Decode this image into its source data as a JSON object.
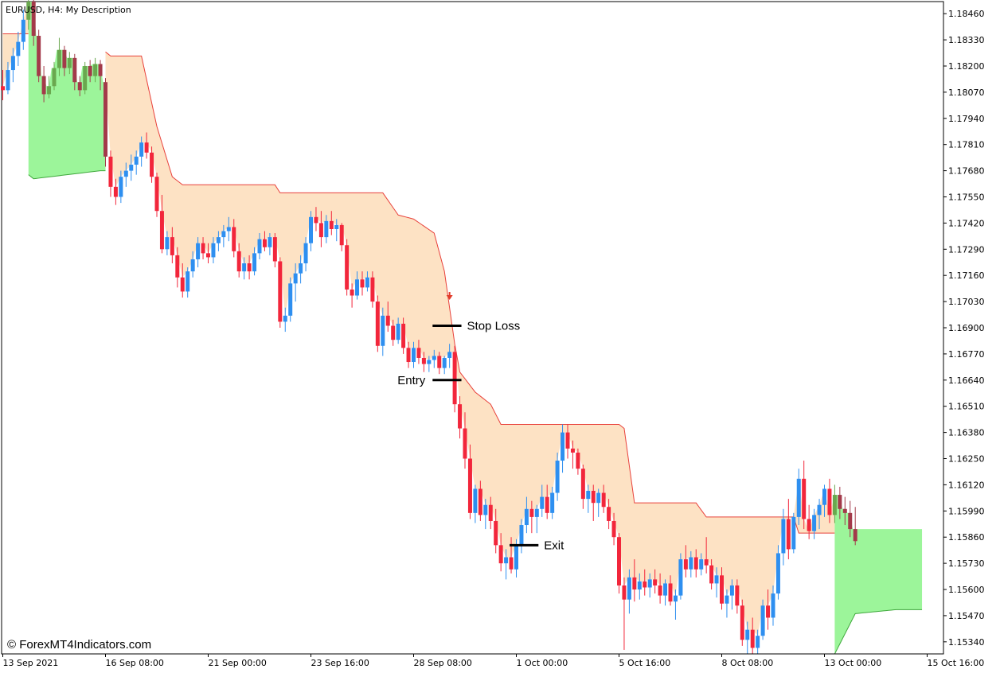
{
  "title": "EURUSD, H4:  My Description",
  "watermark": "© ForexMT4Indicators.com",
  "colors": {
    "bull": "#2e8ff0",
    "bear": "#f2263b",
    "doji_bull": "#6aa84f",
    "doji_bear": "#a33a4a",
    "bear_band": "#fde2c4",
    "bear_band_line": "#e8413b",
    "bull_band": "#9cf59a",
    "bull_band_line": "#3fa83c",
    "marker": "#e23b2a",
    "level_line": "#000000"
  },
  "chart_data": {
    "type": "candlestick",
    "symbol": "EURUSD",
    "timeframe": "H4",
    "ylim": [
      1.1528,
      1.1852
    ],
    "y_ticks": [
      "1.18460",
      "1.18330",
      "1.18200",
      "1.18070",
      "1.17940",
      "1.17810",
      "1.17680",
      "1.17550",
      "1.17420",
      "1.17290",
      "1.17160",
      "1.17030",
      "1.16900",
      "1.16770",
      "1.16640",
      "1.16510",
      "1.16380",
      "1.16250",
      "1.16120",
      "1.15990",
      "1.15860",
      "1.15730",
      "1.15600",
      "1.15470",
      "1.15340"
    ],
    "x_ticks": [
      {
        "label": "13 Sep 2021",
        "bar": 0
      },
      {
        "label": "16 Sep 08:00",
        "bar": 20
      },
      {
        "label": "21 Sep 00:00",
        "bar": 40
      },
      {
        "label": "23 Sep 16:00",
        "bar": 60
      },
      {
        "label": "28 Sep 08:00",
        "bar": 80
      },
      {
        "label": "1 Oct 00:00",
        "bar": 100
      },
      {
        "label": "5 Oct 16:00",
        "bar": 120
      },
      {
        "label": "8 Oct 08:00",
        "bar": 140
      },
      {
        "label": "13 Oct 00:00",
        "bar": 160
      },
      {
        "label": "15 Oct 16:00",
        "bar": 180
      }
    ],
    "candles": [
      [
        1.181,
        1.1818,
        1.1803,
        1.1808
      ],
      [
        1.1808,
        1.1822,
        1.1806,
        1.1818
      ],
      [
        1.1818,
        1.1829,
        1.1812,
        1.1825
      ],
      [
        1.1825,
        1.1837,
        1.182,
        1.1832
      ],
      [
        1.1832,
        1.1848,
        1.1828,
        1.1843
      ],
      [
        1.1843,
        1.1856,
        1.1838,
        1.1852
      ],
      [
        1.1852,
        1.1854,
        1.183,
        1.1835
      ],
      [
        1.1835,
        1.1838,
        1.1812,
        1.1815
      ],
      [
        1.1815,
        1.182,
        1.1802,
        1.1806
      ],
      [
        1.1806,
        1.1815,
        1.1804,
        1.181
      ],
      [
        1.181,
        1.1822,
        1.1808,
        1.1819
      ],
      [
        1.1819,
        1.1834,
        1.1815,
        1.1828
      ],
      [
        1.1828,
        1.183,
        1.1815,
        1.1819
      ],
      [
        1.1819,
        1.1827,
        1.1816,
        1.1824
      ],
      [
        1.1824,
        1.1826,
        1.1808,
        1.1812
      ],
      [
        1.1812,
        1.1815,
        1.1805,
        1.1808
      ],
      [
        1.1808,
        1.1822,
        1.1806,
        1.182
      ],
      [
        1.182,
        1.1823,
        1.1812,
        1.1815
      ],
      [
        1.1815,
        1.1824,
        1.1812,
        1.1821
      ],
      [
        1.1821,
        1.1823,
        1.1808,
        1.1815
      ],
      [
        1.1812,
        1.1814,
        1.177,
        1.1775
      ],
      [
        1.1775,
        1.1778,
        1.1755,
        1.176
      ],
      [
        1.176,
        1.1764,
        1.1751,
        1.1755
      ],
      [
        1.1755,
        1.1768,
        1.1752,
        1.1765
      ],
      [
        1.1765,
        1.1772,
        1.176,
        1.1768
      ],
      [
        1.1768,
        1.1776,
        1.1763,
        1.1771
      ],
      [
        1.1771,
        1.1778,
        1.1766,
        1.1775
      ],
      [
        1.1775,
        1.1785,
        1.177,
        1.1782
      ],
      [
        1.1782,
        1.1787,
        1.1774,
        1.1777
      ],
      [
        1.1777,
        1.178,
        1.1762,
        1.1765
      ],
      [
        1.1765,
        1.1767,
        1.1745,
        1.1748
      ],
      [
        1.1748,
        1.1756,
        1.1727,
        1.1729
      ],
      [
        1.1729,
        1.1738,
        1.1726,
        1.1735
      ],
      [
        1.1735,
        1.174,
        1.1722,
        1.1726
      ],
      [
        1.1726,
        1.173,
        1.171,
        1.1715
      ],
      [
        1.1715,
        1.1722,
        1.1705,
        1.1708
      ],
      [
        1.1708,
        1.172,
        1.1705,
        1.1718
      ],
      [
        1.1718,
        1.1728,
        1.1715,
        1.1724
      ],
      [
        1.1724,
        1.1735,
        1.172,
        1.1732
      ],
      [
        1.1732,
        1.1735,
        1.1724,
        1.1727
      ],
      [
        1.1727,
        1.1732,
        1.1722,
        1.1725
      ],
      [
        1.1725,
        1.1735,
        1.1722,
        1.1732
      ],
      [
        1.1732,
        1.1738,
        1.1728,
        1.1735
      ],
      [
        1.1735,
        1.1741,
        1.173,
        1.1738
      ],
      [
        1.1738,
        1.1745,
        1.1733,
        1.174
      ],
      [
        1.174,
        1.1744,
        1.1725,
        1.1728
      ],
      [
        1.1728,
        1.1732,
        1.1715,
        1.1718
      ],
      [
        1.1718,
        1.1725,
        1.1714,
        1.1722
      ],
      [
        1.1722,
        1.1726,
        1.1714,
        1.1718
      ],
      [
        1.1718,
        1.173,
        1.1716,
        1.1727
      ],
      [
        1.1727,
        1.1737,
        1.1724,
        1.1734
      ],
      [
        1.1734,
        1.1738,
        1.1728,
        1.173
      ],
      [
        1.173,
        1.1737,
        1.1726,
        1.1735
      ],
      [
        1.1735,
        1.1737,
        1.172,
        1.1723
      ],
      [
        1.1723,
        1.1725,
        1.169,
        1.1693
      ],
      [
        1.1693,
        1.17,
        1.1688,
        1.1696
      ],
      [
        1.1696,
        1.1715,
        1.1693,
        1.1712
      ],
      [
        1.1712,
        1.1722,
        1.1703,
        1.1717
      ],
      [
        1.1717,
        1.1726,
        1.1712,
        1.1722
      ],
      [
        1.1722,
        1.1735,
        1.1718,
        1.1732
      ],
      [
        1.1732,
        1.1748,
        1.1728,
        1.1745
      ],
      [
        1.1745,
        1.175,
        1.1738,
        1.1742
      ],
      [
        1.1742,
        1.1748,
        1.173,
        1.1735
      ],
      [
        1.1735,
        1.1746,
        1.1732,
        1.1743
      ],
      [
        1.1743,
        1.1748,
        1.1736,
        1.1739
      ],
      [
        1.1739,
        1.1744,
        1.1733,
        1.1741
      ],
      [
        1.1741,
        1.1742,
        1.1728,
        1.1731
      ],
      [
        1.1731,
        1.1734,
        1.1706,
        1.1709
      ],
      [
        1.1709,
        1.1712,
        1.17,
        1.1706
      ],
      [
        1.1706,
        1.1718,
        1.1704,
        1.1714
      ],
      [
        1.1714,
        1.1718,
        1.1706,
        1.171
      ],
      [
        1.171,
        1.1718,
        1.1708,
        1.1715
      ],
      [
        1.1715,
        1.1718,
        1.17,
        1.1703
      ],
      [
        1.1703,
        1.1706,
        1.1678,
        1.1681
      ],
      [
        1.1681,
        1.17,
        1.1676,
        1.1696
      ],
      [
        1.1696,
        1.1703,
        1.1688,
        1.1691
      ],
      [
        1.1691,
        1.1694,
        1.1681,
        1.1684
      ],
      [
        1.1684,
        1.1695,
        1.1682,
        1.1692
      ],
      [
        1.1692,
        1.1695,
        1.1677,
        1.168
      ],
      [
        1.168,
        1.1683,
        1.167,
        1.1673
      ],
      [
        1.1673,
        1.1683,
        1.167,
        1.168
      ],
      [
        1.168,
        1.1684,
        1.1672,
        1.1675
      ],
      [
        1.1675,
        1.1678,
        1.1668,
        1.1672
      ],
      [
        1.1672,
        1.1676,
        1.1668,
        1.1674
      ],
      [
        1.1674,
        1.1679,
        1.167,
        1.1676
      ],
      [
        1.1676,
        1.1678,
        1.1667,
        1.167
      ],
      [
        1.167,
        1.1676,
        1.1667,
        1.1675
      ],
      [
        1.1675,
        1.1682,
        1.167,
        1.1678
      ],
      [
        1.1678,
        1.1681,
        1.1648,
        1.1652
      ],
      [
        1.1652,
        1.1656,
        1.1635,
        1.164
      ],
      [
        1.164,
        1.1648,
        1.162,
        1.1625
      ],
      [
        1.1625,
        1.1632,
        1.1595,
        1.1598
      ],
      [
        1.1598,
        1.1612,
        1.1593,
        1.161
      ],
      [
        1.161,
        1.1614,
        1.1594,
        1.1597
      ],
      [
        1.1597,
        1.1605,
        1.159,
        1.1602
      ],
      [
        1.1602,
        1.1606,
        1.159,
        1.1594
      ],
      [
        1.1594,
        1.16,
        1.1578,
        1.1582
      ],
      [
        1.1582,
        1.1588,
        1.1569,
        1.1573
      ],
      [
        1.1573,
        1.158,
        1.1565,
        1.1576
      ],
      [
        1.1576,
        1.1586,
        1.1568,
        1.157
      ],
      [
        1.157,
        1.1585,
        1.1566,
        1.1582
      ],
      [
        1.1582,
        1.1595,
        1.1578,
        1.1592
      ],
      [
        1.1592,
        1.1606,
        1.1588,
        1.16
      ],
      [
        1.16,
        1.1604,
        1.1588,
        1.1596
      ],
      [
        1.1596,
        1.1602,
        1.1588,
        1.16
      ],
      [
        1.16,
        1.1612,
        1.1596,
        1.1606
      ],
      [
        1.1606,
        1.1612,
        1.1595,
        1.1598
      ],
      [
        1.1598,
        1.1611,
        1.1595,
        1.1608
      ],
      [
        1.1608,
        1.1628,
        1.1604,
        1.1624
      ],
      [
        1.1624,
        1.1642,
        1.1618,
        1.1638
      ],
      [
        1.1638,
        1.1642,
        1.1625,
        1.163
      ],
      [
        1.163,
        1.1634,
        1.162,
        1.1628
      ],
      [
        1.1628,
        1.163,
        1.1617,
        1.162
      ],
      [
        1.162,
        1.1622,
        1.16,
        1.1605
      ],
      [
        1.1605,
        1.1612,
        1.1598,
        1.1609
      ],
      [
        1.1609,
        1.1612,
        1.1594,
        1.1603
      ],
      [
        1.1603,
        1.161,
        1.1596,
        1.1608
      ],
      [
        1.1608,
        1.1612,
        1.1598,
        1.1601
      ],
      [
        1.1601,
        1.1605,
        1.159,
        1.1594
      ],
      [
        1.1594,
        1.1598,
        1.1582,
        1.1586
      ],
      [
        1.1586,
        1.1588,
        1.1558,
        1.1562
      ],
      [
        1.1562,
        1.1566,
        1.153,
        1.1555
      ],
      [
        1.1555,
        1.157,
        1.1548,
        1.1566
      ],
      [
        1.1566,
        1.1575,
        1.1554,
        1.156
      ],
      [
        1.156,
        1.1568,
        1.1555,
        1.1564
      ],
      [
        1.1564,
        1.157,
        1.1557,
        1.1561
      ],
      [
        1.1561,
        1.1568,
        1.1556,
        1.1565
      ],
      [
        1.1565,
        1.157,
        1.1558,
        1.1562
      ],
      [
        1.1562,
        1.1568,
        1.1553,
        1.1557
      ],
      [
        1.1557,
        1.1565,
        1.1552,
        1.1563
      ],
      [
        1.1563,
        1.1567,
        1.1552,
        1.1554
      ],
      [
        1.1554,
        1.156,
        1.1545,
        1.1557
      ],
      [
        1.1557,
        1.1578,
        1.1555,
        1.1575
      ],
      [
        1.1575,
        1.1582,
        1.1566,
        1.157
      ],
      [
        1.157,
        1.1579,
        1.1566,
        1.1576
      ],
      [
        1.1576,
        1.158,
        1.1566,
        1.157
      ],
      [
        1.157,
        1.1578,
        1.1567,
        1.1575
      ],
      [
        1.1575,
        1.1586,
        1.1568,
        1.1572
      ],
      [
        1.1572,
        1.1575,
        1.156,
        1.1563
      ],
      [
        1.1563,
        1.1571,
        1.1556,
        1.1567
      ],
      [
        1.1567,
        1.1571,
        1.155,
        1.1553
      ],
      [
        1.1553,
        1.156,
        1.1546,
        1.1557
      ],
      [
        1.1557,
        1.1565,
        1.155,
        1.1562
      ],
      [
        1.1562,
        1.1565,
        1.1548,
        1.1552
      ],
      [
        1.1552,
        1.1555,
        1.1532,
        1.1535
      ],
      [
        1.1535,
        1.1544,
        1.1528,
        1.154
      ],
      [
        1.154,
        1.1546,
        1.1528,
        1.1531
      ],
      [
        1.1531,
        1.154,
        1.1528,
        1.1537
      ],
      [
        1.1537,
        1.1555,
        1.1535,
        1.1552
      ],
      [
        1.1552,
        1.156,
        1.154,
        1.1546
      ],
      [
        1.1546,
        1.1562,
        1.1542,
        1.1558
      ],
      [
        1.1558,
        1.1582,
        1.1555,
        1.1578
      ],
      [
        1.1578,
        1.16,
        1.1572,
        1.1595
      ],
      [
        1.1595,
        1.1605,
        1.1575,
        1.158
      ],
      [
        1.158,
        1.1598,
        1.1578,
        1.1596
      ],
      [
        1.1596,
        1.162,
        1.1592,
        1.1615
      ],
      [
        1.1615,
        1.1624,
        1.159,
        1.1595
      ],
      [
        1.1595,
        1.1602,
        1.1585,
        1.1589
      ],
      [
        1.1589,
        1.16,
        1.1585,
        1.1597
      ],
      [
        1.1597,
        1.1605,
        1.159,
        1.1602
      ],
      [
        1.1602,
        1.1612,
        1.1596,
        1.161
      ],
      [
        1.161,
        1.1615,
        1.1593,
        1.1597
      ],
      [
        1.1597,
        1.1612,
        1.1593,
        1.1607
      ],
      [
        1.1607,
        1.1611,
        1.1595,
        1.16
      ],
      [
        1.16,
        1.1606,
        1.1592,
        1.1598
      ],
      [
        1.1598,
        1.1604,
        1.1586,
        1.159
      ],
      [
        1.159,
        1.1601,
        1.1582,
        1.1584
      ]
    ],
    "bands": {
      "bear_upper": [
        [
          0,
          1.1836
        ],
        [
          5,
          1.1836
        ],
        [
          14,
          1.1826
        ],
        [
          20,
          1.1827
        ],
        [
          21,
          1.1825
        ],
        [
          27,
          1.1825
        ],
        [
          30,
          1.179
        ],
        [
          33,
          1.1765
        ],
        [
          35,
          1.1761
        ],
        [
          53,
          1.1761
        ],
        [
          54,
          1.1757
        ],
        [
          74,
          1.1757
        ],
        [
          77,
          1.1746
        ],
        [
          80,
          1.1744
        ],
        [
          84,
          1.1737
        ],
        [
          86,
          1.1718
        ],
        [
          88,
          1.1682
        ],
        [
          89,
          1.1668
        ],
        [
          92,
          1.1658
        ],
        [
          95,
          1.1652
        ],
        [
          97,
          1.1642
        ],
        [
          120,
          1.1642
        ],
        [
          121,
          1.164
        ],
        [
          123,
          1.1603
        ],
        [
          135,
          1.1603
        ],
        [
          137,
          1.1596
        ],
        [
          154,
          1.1596
        ],
        [
          155,
          1.1588
        ],
        [
          162,
          1.1588
        ]
      ],
      "bull_upper": [
        [
          0,
          1.1836
        ],
        [
          5,
          1.1836
        ],
        [
          10,
          1.1826
        ],
        [
          20,
          1.1827
        ],
        [
          162,
          1.1588
        ],
        [
          165,
          1.1604
        ],
        [
          175,
          1.1604
        ],
        [
          179,
          1.1604
        ]
      ],
      "bull_lower": [
        [
          5,
          1.1766
        ],
        [
          6,
          1.1764
        ],
        [
          19,
          1.1768
        ],
        [
          20,
          1.1768
        ],
        [
          162,
          1.1528
        ],
        [
          166,
          1.1548
        ],
        [
          174,
          1.155
        ],
        [
          179,
          1.155
        ]
      ],
      "bear_segments": [
        [
          0,
          5
        ],
        [
          20,
          162
        ]
      ],
      "bull_segments": [
        [
          5,
          20
        ],
        [
          162,
          179
        ]
      ]
    },
    "signal_marker_bar": 87,
    "signal_marker_price": 1.1705,
    "levels": [
      {
        "label": "Stop Loss",
        "price": 1.1691,
        "bar_from": 84,
        "bar_to": 89,
        "label_side": "right"
      },
      {
        "label": "Entry",
        "price": 1.1664,
        "bar_from": 84,
        "bar_to": 89,
        "label_side": "left"
      },
      {
        "label": "Exit",
        "price": 1.1582,
        "bar_from": 99,
        "bar_to": 104,
        "label_side": "right"
      }
    ]
  }
}
